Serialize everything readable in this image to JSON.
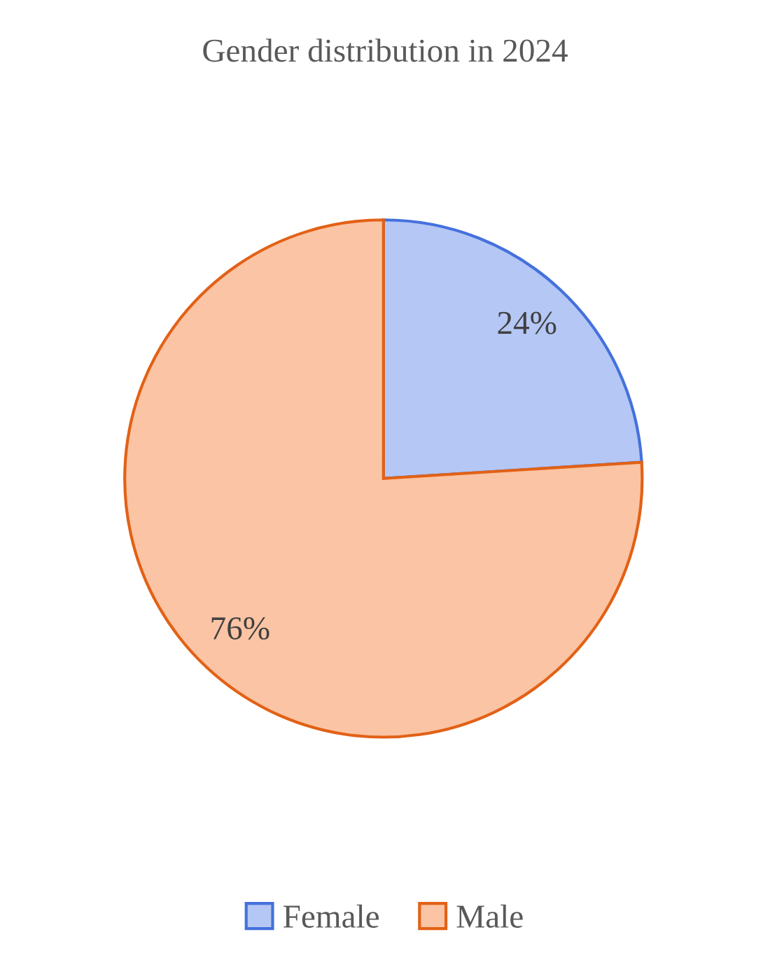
{
  "chart_data": {
    "type": "pie",
    "title": "Gender distribution in 2024",
    "categories": [
      "Female",
      "Male"
    ],
    "values": [
      24,
      76
    ],
    "colors": [
      "#b4c7f5",
      "#fbc4a4"
    ],
    "value_labels": [
      "24%",
      "76%"
    ],
    "legend": "bottom"
  }
}
